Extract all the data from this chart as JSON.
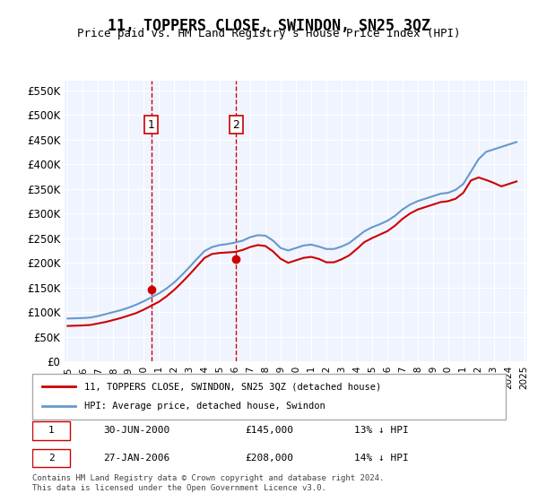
{
  "title": "11, TOPPERS CLOSE, SWINDON, SN25 3QZ",
  "subtitle": "Price paid vs. HM Land Registry's House Price Index (HPI)",
  "red_label": "11, TOPPERS CLOSE, SWINDON, SN25 3QZ (detached house)",
  "blue_label": "HPI: Average price, detached house, Swindon",
  "annotation1_box": "1",
  "annotation1_date": "30-JUN-2000",
  "annotation1_price": "£145,000",
  "annotation1_hpi": "13% ↓ HPI",
  "annotation2_box": "2",
  "annotation2_date": "27-JAN-2006",
  "annotation2_price": "£208,000",
  "annotation2_hpi": "14% ↓ HPI",
  "footer": "Contains HM Land Registry data © Crown copyright and database right 2024.\nThis data is licensed under the Open Government Licence v3.0.",
  "ylim": [
    0,
    570000
  ],
  "yticks": [
    0,
    50000,
    100000,
    150000,
    200000,
    250000,
    300000,
    350000,
    400000,
    450000,
    500000,
    550000
  ],
  "ytick_labels": [
    "£0",
    "£50K",
    "£100K",
    "£150K",
    "£200K",
    "£250K",
    "£300K",
    "£350K",
    "£400K",
    "£450K",
    "£500K",
    "£550K"
  ],
  "background_color": "#f0f4ff",
  "plot_bg_color": "#f0f4ff",
  "red_color": "#cc0000",
  "blue_color": "#6699cc",
  "vline1_x": 2000.5,
  "vline2_x": 2006.08,
  "vline_color": "#cc0000",
  "sale1_x": 2000.5,
  "sale1_y": 145000,
  "sale2_x": 2006.08,
  "sale2_y": 208000,
  "hpi_data": {
    "years": [
      1995,
      1995.5,
      1996,
      1996.5,
      1997,
      1997.5,
      1998,
      1998.5,
      1999,
      1999.5,
      2000,
      2000.5,
      2001,
      2001.5,
      2002,
      2002.5,
      2003,
      2003.5,
      2004,
      2004.5,
      2005,
      2005.5,
      2006,
      2006.5,
      2007,
      2007.5,
      2008,
      2008.5,
      2009,
      2009.5,
      2010,
      2010.5,
      2011,
      2011.5,
      2012,
      2012.5,
      2013,
      2013.5,
      2014,
      2014.5,
      2015,
      2015.5,
      2016,
      2016.5,
      2017,
      2017.5,
      2018,
      2018.5,
      2019,
      2019.5,
      2020,
      2020.5,
      2021,
      2021.5,
      2022,
      2022.5,
      2023,
      2023.5,
      2024,
      2024.5
    ],
    "hpi_values": [
      87000,
      87500,
      88000,
      89000,
      92000,
      96000,
      100000,
      104000,
      109000,
      115000,
      122000,
      130000,
      138000,
      148000,
      160000,
      175000,
      191000,
      208000,
      224000,
      232000,
      236000,
      238000,
      241000,
      245000,
      252000,
      256000,
      255000,
      245000,
      230000,
      225000,
      230000,
      235000,
      237000,
      233000,
      228000,
      228000,
      233000,
      240000,
      252000,
      264000,
      272000,
      278000,
      285000,
      295000,
      308000,
      318000,
      325000,
      330000,
      335000,
      340000,
      342000,
      348000,
      360000,
      385000,
      410000,
      425000,
      430000,
      435000,
      440000,
      445000
    ],
    "red_values": [
      72000,
      72500,
      73000,
      74000,
      77000,
      80000,
      84000,
      88000,
      93000,
      98000,
      105000,
      113000,
      121000,
      132000,
      145000,
      160000,
      176000,
      193000,
      210000,
      218000,
      220000,
      221000,
      222000,
      226000,
      232000,
      236000,
      234000,
      223000,
      208000,
      200000,
      205000,
      210000,
      212000,
      208000,
      201000,
      201000,
      207000,
      215000,
      228000,
      242000,
      250000,
      257000,
      264000,
      275000,
      289000,
      300000,
      308000,
      313000,
      318000,
      323000,
      325000,
      330000,
      342000,
      367000,
      373000,
      368000,
      362000,
      355000,
      360000,
      365000
    ]
  },
  "xtick_years": [
    1995,
    1996,
    1997,
    1998,
    1999,
    2000,
    2001,
    2002,
    2003,
    2004,
    2005,
    2006,
    2007,
    2008,
    2009,
    2010,
    2011,
    2012,
    2013,
    2014,
    2015,
    2016,
    2017,
    2018,
    2019,
    2020,
    2021,
    2022,
    2023,
    2024,
    2025
  ]
}
